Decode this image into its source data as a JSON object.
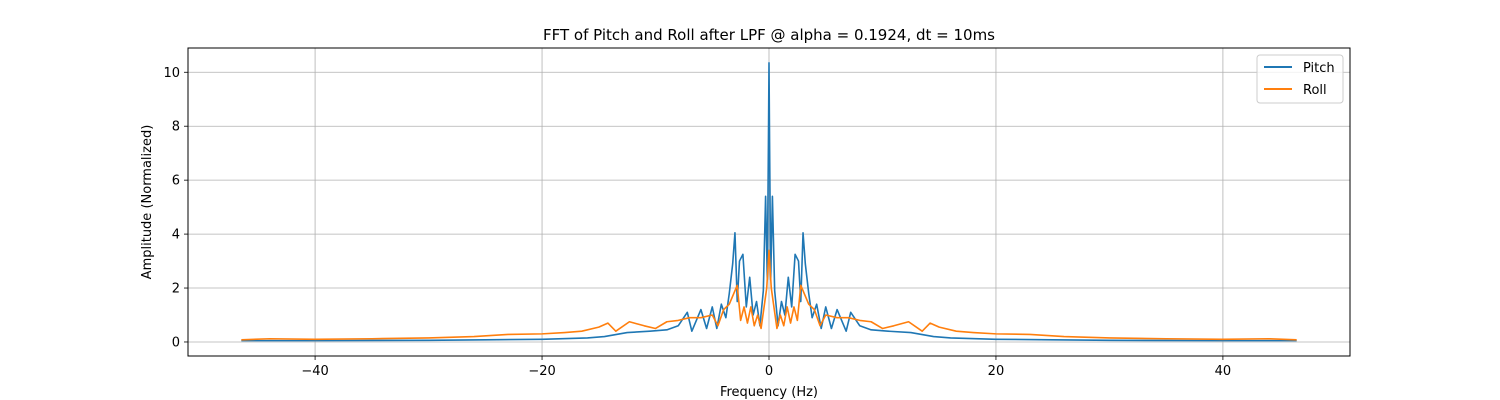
{
  "chart_data": {
    "type": "line",
    "title": "FFT of Pitch and Roll after LPF @ alpha = 0.1924, dt = 10ms",
    "xlabel": "Frequency (Hz)",
    "ylabel": "Amplitude (Normalized)",
    "xlim": [
      -51.2,
      51.2
    ],
    "ylim": [
      -0.52,
      10.9
    ],
    "xticks": [
      -40,
      -20,
      0,
      20,
      40
    ],
    "yticks": [
      0,
      2,
      4,
      6,
      8,
      10
    ],
    "grid": true,
    "legend": "top-right",
    "series": [
      {
        "name": "Pitch",
        "color": "#1f77b4",
        "points": [
          [
            -46.5,
            0.05
          ],
          [
            -40,
            0.05
          ],
          [
            -30,
            0.06
          ],
          [
            -25,
            0.08
          ],
          [
            -20,
            0.1
          ],
          [
            -16,
            0.15
          ],
          [
            -14.5,
            0.2
          ],
          [
            -12.5,
            0.35
          ],
          [
            -10.5,
            0.4
          ],
          [
            -9,
            0.45
          ],
          [
            -8,
            0.6
          ],
          [
            -7.2,
            1.1
          ],
          [
            -6.8,
            0.4
          ],
          [
            -6,
            1.2
          ],
          [
            -5.5,
            0.5
          ],
          [
            -5,
            1.3
          ],
          [
            -4.6,
            0.5
          ],
          [
            -4.2,
            1.4
          ],
          [
            -3.8,
            0.9
          ],
          [
            -3.5,
            1.8
          ],
          [
            -3.2,
            2.9
          ],
          [
            -3.0,
            4.05
          ],
          [
            -2.8,
            1.5
          ],
          [
            -2.6,
            3.0
          ],
          [
            -2.3,
            3.25
          ],
          [
            -2.0,
            1.3
          ],
          [
            -1.7,
            2.4
          ],
          [
            -1.4,
            1.0
          ],
          [
            -1.1,
            1.5
          ],
          [
            -0.8,
            0.6
          ],
          [
            -0.5,
            1.9
          ],
          [
            -0.3,
            5.4
          ],
          [
            -0.15,
            2.3
          ],
          [
            -0.05,
            7.4
          ],
          [
            0.0,
            10.35
          ],
          [
            0.05,
            7.4
          ],
          [
            0.15,
            2.3
          ],
          [
            0.3,
            5.4
          ],
          [
            0.5,
            1.9
          ],
          [
            0.8,
            0.6
          ],
          [
            1.1,
            1.5
          ],
          [
            1.4,
            1.0
          ],
          [
            1.7,
            2.4
          ],
          [
            2.0,
            1.3
          ],
          [
            2.3,
            3.25
          ],
          [
            2.6,
            3.0
          ],
          [
            2.8,
            1.5
          ],
          [
            3.0,
            4.05
          ],
          [
            3.2,
            2.9
          ],
          [
            3.5,
            1.8
          ],
          [
            3.8,
            0.9
          ],
          [
            4.2,
            1.4
          ],
          [
            4.6,
            0.5
          ],
          [
            5,
            1.3
          ],
          [
            5.5,
            0.5
          ],
          [
            6,
            1.2
          ],
          [
            6.8,
            0.4
          ],
          [
            7.2,
            1.1
          ],
          [
            8,
            0.6
          ],
          [
            9,
            0.45
          ],
          [
            10.5,
            0.4
          ],
          [
            12.5,
            0.35
          ],
          [
            14.5,
            0.2
          ],
          [
            16,
            0.15
          ],
          [
            20,
            0.1
          ],
          [
            25,
            0.08
          ],
          [
            30,
            0.06
          ],
          [
            40,
            0.05
          ],
          [
            46.5,
            0.05
          ]
        ]
      },
      {
        "name": "Roll",
        "color": "#ff7f0e",
        "points": [
          [
            -46.5,
            0.08
          ],
          [
            -44,
            0.12
          ],
          [
            -40,
            0.1
          ],
          [
            -35,
            0.12
          ],
          [
            -30,
            0.15
          ],
          [
            -26,
            0.2
          ],
          [
            -23,
            0.28
          ],
          [
            -20,
            0.3
          ],
          [
            -18,
            0.35
          ],
          [
            -16.5,
            0.4
          ],
          [
            -15,
            0.55
          ],
          [
            -14.2,
            0.7
          ],
          [
            -13.5,
            0.4
          ],
          [
            -12.3,
            0.75
          ],
          [
            -11,
            0.6
          ],
          [
            -10,
            0.5
          ],
          [
            -9,
            0.75
          ],
          [
            -8,
            0.8
          ],
          [
            -7,
            0.9
          ],
          [
            -6,
            0.9
          ],
          [
            -5,
            1.0
          ],
          [
            -4.5,
            0.6
          ],
          [
            -4,
            1.2
          ],
          [
            -3.5,
            1.4
          ],
          [
            -3.0,
            1.9
          ],
          [
            -2.8,
            2.1
          ],
          [
            -2.5,
            0.8
          ],
          [
            -2.2,
            1.3
          ],
          [
            -1.9,
            0.7
          ],
          [
            -1.6,
            1.3
          ],
          [
            -1.3,
            0.6
          ],
          [
            -1.0,
            1.0
          ],
          [
            -0.7,
            0.5
          ],
          [
            -0.4,
            1.4
          ],
          [
            -0.2,
            2.0
          ],
          [
            0.0,
            3.4
          ],
          [
            0.2,
            2.0
          ],
          [
            0.4,
            1.4
          ],
          [
            0.7,
            0.5
          ],
          [
            1.0,
            1.0
          ],
          [
            1.3,
            0.6
          ],
          [
            1.6,
            1.3
          ],
          [
            1.9,
            0.7
          ],
          [
            2.2,
            1.3
          ],
          [
            2.5,
            0.8
          ],
          [
            2.8,
            2.1
          ],
          [
            3.0,
            1.9
          ],
          [
            3.5,
            1.4
          ],
          [
            4,
            1.2
          ],
          [
            4.5,
            0.6
          ],
          [
            5,
            1.0
          ],
          [
            6,
            0.9
          ],
          [
            7,
            0.9
          ],
          [
            8,
            0.8
          ],
          [
            9,
            0.75
          ],
          [
            10,
            0.5
          ],
          [
            11,
            0.6
          ],
          [
            12.3,
            0.75
          ],
          [
            13.5,
            0.4
          ],
          [
            14.2,
            0.7
          ],
          [
            15,
            0.55
          ],
          [
            16.5,
            0.4
          ],
          [
            18,
            0.35
          ],
          [
            20,
            0.3
          ],
          [
            23,
            0.28
          ],
          [
            26,
            0.2
          ],
          [
            30,
            0.15
          ],
          [
            35,
            0.12
          ],
          [
            40,
            0.1
          ],
          [
            44,
            0.12
          ],
          [
            46.5,
            0.08
          ]
        ]
      }
    ]
  }
}
